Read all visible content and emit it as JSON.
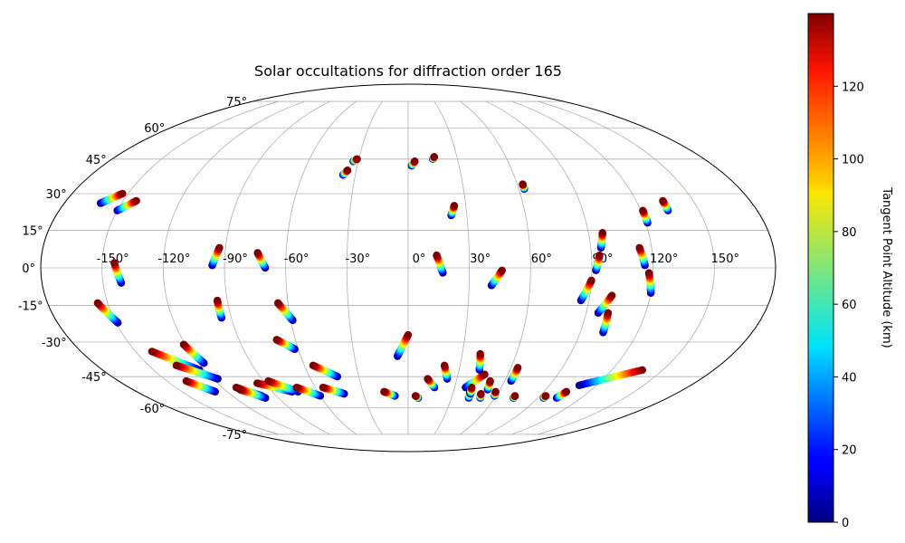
{
  "chart_data": {
    "type": "scatter",
    "projection": "mollweide",
    "title": "Solar occultations for diffraction order 165",
    "xlabel": "",
    "ylabel": "",
    "grid": true,
    "x_ticks": [
      "-150°",
      "-120°",
      "-90°",
      "-60°",
      "-30°",
      "0°",
      "30°",
      "60°",
      "90°",
      "120°",
      "150°"
    ],
    "x_tick_values": [
      -150,
      -120,
      -90,
      -60,
      -30,
      0,
      30,
      60,
      90,
      120,
      150
    ],
    "y_ticks": [
      "-75°",
      "-60°",
      "-45°",
      "-30°",
      "-15°",
      "0°",
      "15°",
      "30°",
      "45°",
      "60°",
      "75°"
    ],
    "y_tick_values": [
      -75,
      -60,
      -45,
      -30,
      -15,
      0,
      15,
      30,
      45,
      60,
      75
    ],
    "colorbar": {
      "label": "Tangent Point Altitude (km)",
      "colormap": "jet",
      "range": [
        0,
        140
      ],
      "ticks": [
        "0",
        "20",
        "40",
        "60",
        "80",
        "100",
        "120"
      ],
      "tick_values": [
        0,
        20,
        40,
        60,
        80,
        100,
        120
      ]
    },
    "series": [
      {
        "lon_start": -161,
        "lat_start": 26,
        "lon_end": -153,
        "lat_end": 30
      },
      {
        "lon_start": -150,
        "lat_start": 23,
        "lon_end": -143,
        "lat_end": 27
      },
      {
        "lon_start": -141,
        "lat_start": -6,
        "lon_end": -144,
        "lat_end": 2
      },
      {
        "lon_start": -149,
        "lat_start": -22,
        "lon_end": -155,
        "lat_end": -14
      },
      {
        "lon_start": -123,
        "lat_start": -42,
        "lon_end": -141,
        "lat_end": -34
      },
      {
        "lon_start": -117,
        "lat_start": -46,
        "lon_end": -134,
        "lat_end": -40
      },
      {
        "lon_start": -128,
        "lat_start": -52,
        "lon_end": -138,
        "lat_end": -47
      },
      {
        "lon_start": -117,
        "lat_start": -39,
        "lon_end": -121,
        "lat_end": -31
      },
      {
        "lon_start": -95,
        "lat_start": -20,
        "lon_end": -95,
        "lat_end": -13
      },
      {
        "lon_start": -96,
        "lat_start": 1,
        "lon_end": -93,
        "lat_end": 8
      },
      {
        "lon_start": -100,
        "lat_start": -54,
        "lon_end": -111,
        "lat_end": -50
      },
      {
        "lon_start": -99,
        "lat_start": -55,
        "lon_end": -110,
        "lat_end": -51
      },
      {
        "lon_start": -77,
        "lat_start": -52,
        "lon_end": -95,
        "lat_end": -48
      },
      {
        "lon_start": -73,
        "lat_start": -52,
        "lon_end": -87,
        "lat_end": -47
      },
      {
        "lon_start": -60,
        "lat_start": -54,
        "lon_end": -72,
        "lat_end": -50
      },
      {
        "lon_start": -62,
        "lat_start": -33,
        "lon_end": -70,
        "lat_end": -29
      },
      {
        "lon_start": -59,
        "lat_start": -21,
        "lon_end": -65,
        "lat_end": -14
      },
      {
        "lon_start": -70,
        "lat_start": 0,
        "lon_end": -74,
        "lat_end": 6
      },
      {
        "lon_start": -43,
        "lat_start": -45,
        "lon_end": -55,
        "lat_end": -40
      },
      {
        "lon_start": -43,
        "lat_start": -53,
        "lon_end": -55,
        "lat_end": -50
      },
      {
        "lon_start": -37,
        "lat_start": 38,
        "lon_end": -35,
        "lat_end": 40
      },
      {
        "lon_start": -33,
        "lat_start": 44,
        "lon_end": -31,
        "lat_end": 45
      },
      {
        "lon_start": -9,
        "lat_start": -54,
        "lon_end": -16,
        "lat_end": -52
      },
      {
        "lon_start": 7,
        "lat_start": -55,
        "lon_end": 5,
        "lat_end": -54
      },
      {
        "lon_start": 2,
        "lat_start": 42,
        "lon_end": 4,
        "lat_end": 44
      },
      {
        "lon_start": 15,
        "lat_start": 45,
        "lon_end": 16,
        "lat_end": 46
      },
      {
        "lon_start": -6,
        "lat_start": -36,
        "lon_end": 0,
        "lat_end": -27
      },
      {
        "lon_start": 17,
        "lat_start": -2,
        "lon_end": 14,
        "lat_end": 5
      },
      {
        "lon_start": 17,
        "lat_start": -50,
        "lon_end": 12,
        "lat_end": -46
      },
      {
        "lon_start": 24,
        "lat_start": -46,
        "lon_end": 21,
        "lat_end": -40
      },
      {
        "lon_start": 22,
        "lat_start": 21,
        "lon_end": 24,
        "lat_end": 25
      },
      {
        "lon_start": 41,
        "lat_start": -7,
        "lon_end": 46,
        "lat_end": -1
      },
      {
        "lon_start": 37,
        "lat_start": -50,
        "lon_end": 46,
        "lat_end": -44
      },
      {
        "lon_start": 42,
        "lat_start": -42,
        "lon_end": 40,
        "lat_end": -35
      },
      {
        "lon_start": 42,
        "lat_start": -55,
        "lon_end": 41,
        "lat_end": -52
      },
      {
        "lon_start": 42,
        "lat_start": -53,
        "lon_end": 41,
        "lat_end": -50
      },
      {
        "lon_start": 50,
        "lat_start": -55,
        "lon_end": 49,
        "lat_end": -53
      },
      {
        "lon_start": 52,
        "lat_start": -51,
        "lon_end": 51,
        "lat_end": -47
      },
      {
        "lon_start": 59,
        "lat_start": -54,
        "lon_end": 58,
        "lat_end": -52
      },
      {
        "lon_start": 64,
        "lat_start": -47,
        "lon_end": 64,
        "lat_end": -41
      },
      {
        "lon_start": 63,
        "lat_start": 32,
        "lon_end": 63,
        "lat_end": 34
      },
      {
        "lon_start": 73,
        "lat_start": -55,
        "lon_end": 73,
        "lat_end": -54
      },
      {
        "lon_start": 86,
        "lat_start": -13,
        "lon_end": 90,
        "lat_end": -5
      },
      {
        "lon_start": 92,
        "lat_start": -1,
        "lon_end": 94,
        "lat_end": 5
      },
      {
        "lon_start": 95,
        "lat_start": 8,
        "lon_end": 97,
        "lat_end": 14
      },
      {
        "lon_start": 96,
        "lat_start": -18,
        "lon_end": 101,
        "lat_end": -11
      },
      {
        "lon_start": 102,
        "lat_start": -26,
        "lon_end": 101,
        "lat_end": -18
      },
      {
        "lon_start": 94,
        "lat_start": -55,
        "lon_end": 94,
        "lat_end": -54
      },
      {
        "lon_start": 103,
        "lat_start": -55,
        "lon_end": 105,
        "lat_end": -52
      },
      {
        "lon_start": 120,
        "lat_start": -10,
        "lon_end": 118,
        "lat_end": -2
      },
      {
        "lon_start": 116,
        "lat_start": 1,
        "lon_end": 114,
        "lat_end": 8
      },
      {
        "lon_start": 121,
        "lat_start": 18,
        "lon_end": 121,
        "lat_end": 23
      },
      {
        "lon_start": 134,
        "lat_start": 23,
        "lon_end": 134,
        "lat_end": 27
      },
      {
        "lon_start": 109,
        "lat_start": -49,
        "lon_end": 138,
        "lat_end": -42
      }
    ]
  }
}
